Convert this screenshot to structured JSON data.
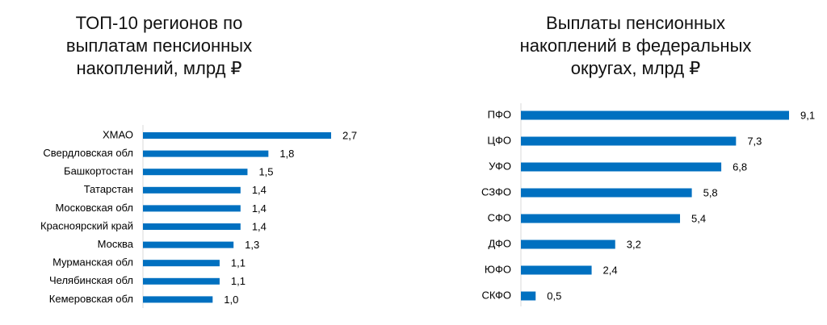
{
  "chart_data": [
    {
      "type": "bar",
      "orientation": "horizontal",
      "title": [
        "ТОП-10 регионов по",
        "выплатам пенсионных",
        "накоплений, млрд ₽"
      ],
      "categories": [
        "ХМАО",
        "Свердловская обл",
        "Башкортостан",
        "Татарстан",
        "Московская обл",
        "Красноярский край",
        "Москва",
        "Мурманская обл",
        "Челябинская обл",
        "Кемеровская обл"
      ],
      "values": [
        2.7,
        1.8,
        1.5,
        1.4,
        1.4,
        1.4,
        1.3,
        1.1,
        1.1,
        1.0
      ],
      "value_labels": [
        "2,7",
        "1,8",
        "1,5",
        "1,4",
        "1,4",
        "1,4",
        "1,3",
        "1,1",
        "1,1",
        "1,0"
      ],
      "color": "#0070c0"
    },
    {
      "type": "bar",
      "orientation": "horizontal",
      "title": [
        "Выплаты пенсионных",
        "накоплений в федеральных",
        "округах, млрд ₽"
      ],
      "categories": [
        "ПФО",
        "ЦФО",
        "УФО",
        "СЗФО",
        "СФО",
        "ДФО",
        "ЮФО",
        "СКФО"
      ],
      "values": [
        9.1,
        7.3,
        6.8,
        5.8,
        5.4,
        3.2,
        2.4,
        0.5
      ],
      "value_labels": [
        "9,1",
        "7,3",
        "6,8",
        "5,8",
        "5,4",
        "3,2",
        "2,4",
        "0,5"
      ],
      "color": "#0070c0"
    }
  ]
}
